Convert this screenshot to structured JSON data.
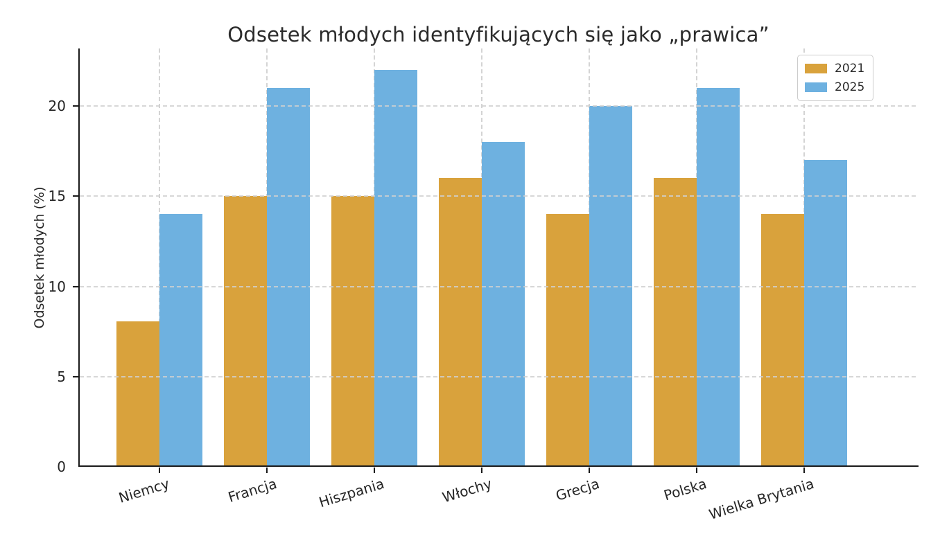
{
  "chart_data": {
    "type": "bar",
    "title": "Odsetek młodych identyfikujących się jako „prawica”",
    "ylabel": "Odsetek młodych (%)",
    "xlabel": "",
    "categories": [
      "Niemcy",
      "Francja",
      "Hiszpania",
      "Włochy",
      "Grecja",
      "Polska",
      "Wielka Brytania"
    ],
    "series": [
      {
        "name": "2021",
        "color": "#D9A23C",
        "values": [
          8,
          15,
          15,
          16,
          14,
          16,
          14
        ]
      },
      {
        "name": "2025",
        "color": "#6EB1E0",
        "values": [
          14,
          21,
          22,
          18,
          20,
          21,
          17
        ]
      }
    ],
    "ylim": [
      0,
      23.2
    ],
    "yticks": [
      0,
      5,
      10,
      15,
      20
    ],
    "ytick_labels": [
      "0",
      "5",
      "10",
      "15",
      "20"
    ],
    "grid": "dashed",
    "grid_color": "#cccccc",
    "legend_position": "upper right",
    "legend_entries": [
      "2021",
      "2025"
    ]
  }
}
